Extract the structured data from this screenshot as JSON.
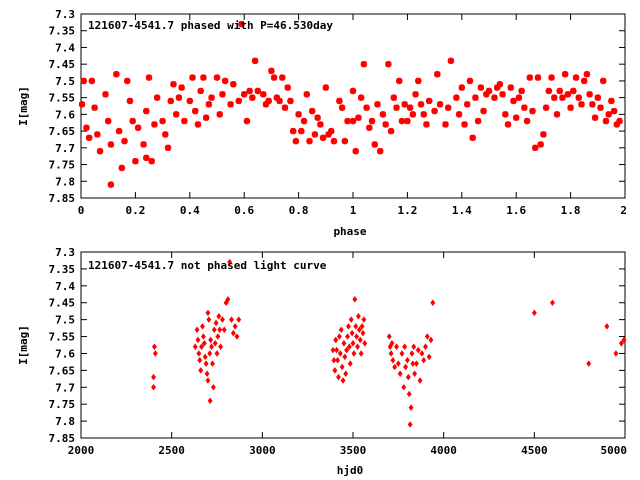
{
  "chart_data": [
    {
      "type": "scatter",
      "title": "121607-4541.7 phased with P=46.530day",
      "xlabel": "phase",
      "ylabel": "I[mag]",
      "xlim": [
        0,
        2
      ],
      "ylim": [
        7.3,
        7.85
      ],
      "y_inverted": true,
      "grid": false,
      "marker": "star",
      "marker_color": "#ff0000",
      "x_ticks": [
        "0",
        "0.2",
        "0.4",
        "0.6",
        "0.8",
        "1",
        "1.2",
        "1.4",
        "1.6",
        "1.8",
        "2"
      ],
      "y_ticks": [
        "7.3",
        "7.35",
        "7.4",
        "7.45",
        "7.5",
        "7.55",
        "7.6",
        "7.65",
        "7.7",
        "7.75",
        "7.8",
        "7.85"
      ],
      "points": [
        [
          0.59,
          7.33
        ],
        [
          0.01,
          7.5
        ],
        [
          0.0,
          7.57
        ],
        [
          0.02,
          7.64
        ],
        [
          0.03,
          7.67
        ],
        [
          0.04,
          7.5
        ],
        [
          0.05,
          7.58
        ],
        [
          0.06,
          7.66
        ],
        [
          0.07,
          7.71
        ],
        [
          0.09,
          7.54
        ],
        [
          0.1,
          7.62
        ],
        [
          0.11,
          7.69
        ],
        [
          0.11,
          7.81
        ],
        [
          0.13,
          7.48
        ],
        [
          0.14,
          7.65
        ],
        [
          0.15,
          7.76
        ],
        [
          0.16,
          7.68
        ],
        [
          0.17,
          7.5
        ],
        [
          0.18,
          7.56
        ],
        [
          0.19,
          7.62
        ],
        [
          0.2,
          7.74
        ],
        [
          0.21,
          7.64
        ],
        [
          0.23,
          7.69
        ],
        [
          0.24,
          7.59
        ],
        [
          0.24,
          7.73
        ],
        [
          0.25,
          7.49
        ],
        [
          0.26,
          7.74
        ],
        [
          0.27,
          7.63
        ],
        [
          0.28,
          7.55
        ],
        [
          0.3,
          7.62
        ],
        [
          0.31,
          7.66
        ],
        [
          0.32,
          7.7
        ],
        [
          0.33,
          7.56
        ],
        [
          0.34,
          7.51
        ],
        [
          0.35,
          7.6
        ],
        [
          0.36,
          7.55
        ],
        [
          0.37,
          7.52
        ],
        [
          0.38,
          7.62
        ],
        [
          0.4,
          7.56
        ],
        [
          0.41,
          7.49
        ],
        [
          0.42,
          7.59
        ],
        [
          0.43,
          7.63
        ],
        [
          0.44,
          7.53
        ],
        [
          0.45,
          7.49
        ],
        [
          0.46,
          7.61
        ],
        [
          0.47,
          7.57
        ],
        [
          0.48,
          7.55
        ],
        [
          0.5,
          7.49
        ],
        [
          0.51,
          7.6
        ],
        [
          0.52,
          7.54
        ],
        [
          0.53,
          7.5
        ],
        [
          0.55,
          7.57
        ],
        [
          0.56,
          7.51
        ],
        [
          0.58,
          7.56
        ],
        [
          0.6,
          7.54
        ],
        [
          0.61,
          7.62
        ],
        [
          0.62,
          7.53
        ],
        [
          0.63,
          7.55
        ],
        [
          0.64,
          7.44
        ],
        [
          0.65,
          7.53
        ],
        [
          0.67,
          7.54
        ],
        [
          0.68,
          7.57
        ],
        [
          0.69,
          7.56
        ],
        [
          0.7,
          7.47
        ],
        [
          0.71,
          7.49
        ],
        [
          0.72,
          7.55
        ],
        [
          0.73,
          7.56
        ],
        [
          0.74,
          7.49
        ],
        [
          0.75,
          7.58
        ],
        [
          0.76,
          7.52
        ],
        [
          0.77,
          7.56
        ],
        [
          0.78,
          7.65
        ],
        [
          0.79,
          7.68
        ],
        [
          0.8,
          7.6
        ],
        [
          0.81,
          7.65
        ],
        [
          0.82,
          7.62
        ],
        [
          0.83,
          7.54
        ],
        [
          0.84,
          7.68
        ],
        [
          0.85,
          7.59
        ],
        [
          0.86,
          7.66
        ],
        [
          0.87,
          7.61
        ],
        [
          0.88,
          7.63
        ],
        [
          0.89,
          7.67
        ],
        [
          0.9,
          7.52
        ],
        [
          0.91,
          7.66
        ],
        [
          0.92,
          7.65
        ],
        [
          0.93,
          7.68
        ],
        [
          0.95,
          7.56
        ],
        [
          0.96,
          7.58
        ],
        [
          0.97,
          7.68
        ],
        [
          0.98,
          7.62
        ],
        [
          1.0,
          7.53
        ],
        [
          1.0,
          7.62
        ],
        [
          1.01,
          7.71
        ],
        [
          1.02,
          7.61
        ],
        [
          1.03,
          7.55
        ],
        [
          1.04,
          7.45
        ],
        [
          1.05,
          7.58
        ],
        [
          1.06,
          7.64
        ],
        [
          1.07,
          7.62
        ],
        [
          1.08,
          7.69
        ],
        [
          1.09,
          7.57
        ],
        [
          1.1,
          7.71
        ],
        [
          1.11,
          7.6
        ],
        [
          1.12,
          7.63
        ],
        [
          1.13,
          7.45
        ],
        [
          1.14,
          7.65
        ],
        [
          1.15,
          7.55
        ],
        [
          1.16,
          7.58
        ],
        [
          1.17,
          7.5
        ],
        [
          1.18,
          7.62
        ],
        [
          1.19,
          7.57
        ],
        [
          1.2,
          7.62
        ],
        [
          1.21,
          7.58
        ],
        [
          1.22,
          7.6
        ],
        [
          1.23,
          7.54
        ],
        [
          1.24,
          7.5
        ],
        [
          1.25,
          7.57
        ],
        [
          1.26,
          7.6
        ],
        [
          1.27,
          7.63
        ],
        [
          1.28,
          7.56
        ],
        [
          1.3,
          7.59
        ],
        [
          1.31,
          7.48
        ],
        [
          1.32,
          7.57
        ],
        [
          1.34,
          7.63
        ],
        [
          1.35,
          7.58
        ],
        [
          1.36,
          7.44
        ],
        [
          1.38,
          7.55
        ],
        [
          1.39,
          7.6
        ],
        [
          1.4,
          7.52
        ],
        [
          1.41,
          7.63
        ],
        [
          1.42,
          7.57
        ],
        [
          1.43,
          7.5
        ],
        [
          1.44,
          7.67
        ],
        [
          1.45,
          7.55
        ],
        [
          1.46,
          7.62
        ],
        [
          1.47,
          7.52
        ],
        [
          1.48,
          7.59
        ],
        [
          1.49,
          7.54
        ],
        [
          1.5,
          7.53
        ],
        [
          1.52,
          7.55
        ],
        [
          1.53,
          7.52
        ],
        [
          1.54,
          7.51
        ],
        [
          1.55,
          7.54
        ],
        [
          1.56,
          7.6
        ],
        [
          1.57,
          7.63
        ],
        [
          1.58,
          7.52
        ],
        [
          1.59,
          7.56
        ],
        [
          1.6,
          7.61
        ],
        [
          1.61,
          7.55
        ],
        [
          1.62,
          7.53
        ],
        [
          1.63,
          7.58
        ],
        [
          1.64,
          7.62
        ],
        [
          1.65,
          7.49
        ],
        [
          1.66,
          7.59
        ],
        [
          1.67,
          7.7
        ],
        [
          1.68,
          7.49
        ],
        [
          1.69,
          7.69
        ],
        [
          1.7,
          7.66
        ],
        [
          1.71,
          7.58
        ],
        [
          1.72,
          7.53
        ],
        [
          1.73,
          7.49
        ],
        [
          1.74,
          7.55
        ],
        [
          1.75,
          7.6
        ],
        [
          1.76,
          7.53
        ],
        [
          1.77,
          7.55
        ],
        [
          1.78,
          7.48
        ],
        [
          1.79,
          7.54
        ],
        [
          1.8,
          7.58
        ],
        [
          1.81,
          7.53
        ],
        [
          1.82,
          7.49
        ],
        [
          1.83,
          7.55
        ],
        [
          1.84,
          7.57
        ],
        [
          1.85,
          7.5
        ],
        [
          1.86,
          7.48
        ],
        [
          1.87,
          7.54
        ],
        [
          1.88,
          7.57
        ],
        [
          1.89,
          7.61
        ],
        [
          1.9,
          7.55
        ],
        [
          1.91,
          7.58
        ],
        [
          1.92,
          7.5
        ],
        [
          1.93,
          7.62
        ],
        [
          1.94,
          7.6
        ],
        [
          1.95,
          7.56
        ],
        [
          1.96,
          7.59
        ],
        [
          1.97,
          7.63
        ],
        [
          1.98,
          7.62
        ]
      ]
    },
    {
      "type": "scatter",
      "title": "121607-4541.7 not phased light curve",
      "xlabel": "hjd0",
      "ylabel": "I[mag]",
      "xlim": [
        2000,
        5000
      ],
      "ylim": [
        7.3,
        7.85
      ],
      "y_inverted": true,
      "grid": false,
      "marker": "diamond",
      "marker_color": "#ff0000",
      "x_ticks": [
        "2000",
        "2500",
        "3000",
        "3500",
        "4000",
        "4500",
        "5000"
      ],
      "y_ticks": [
        "7.3",
        "7.35",
        "7.4",
        "7.45",
        "7.5",
        "7.55",
        "7.6",
        "7.65",
        "7.7",
        "7.75",
        "7.8",
        "7.85"
      ],
      "points": [
        [
          2400,
          7.67
        ],
        [
          2400,
          7.7
        ],
        [
          2405,
          7.58
        ],
        [
          2410,
          7.6
        ],
        [
          2630,
          7.58
        ],
        [
          2640,
          7.53
        ],
        [
          2645,
          7.56
        ],
        [
          2650,
          7.6
        ],
        [
          2655,
          7.62
        ],
        [
          2660,
          7.65
        ],
        [
          2665,
          7.58
        ],
        [
          2670,
          7.52
        ],
        [
          2675,
          7.55
        ],
        [
          2680,
          7.57
        ],
        [
          2685,
          7.61
        ],
        [
          2690,
          7.63
        ],
        [
          2695,
          7.66
        ],
        [
          2700,
          7.48
        ],
        [
          2700,
          7.68
        ],
        [
          2705,
          7.5
        ],
        [
          2710,
          7.6
        ],
        [
          2712,
          7.74
        ],
        [
          2715,
          7.56
        ],
        [
          2720,
          7.58
        ],
        [
          2725,
          7.63
        ],
        [
          2730,
          7.7
        ],
        [
          2735,
          7.53
        ],
        [
          2740,
          7.57
        ],
        [
          2745,
          7.51
        ],
        [
          2750,
          7.6
        ],
        [
          2755,
          7.55
        ],
        [
          2760,
          7.49
        ],
        [
          2765,
          7.53
        ],
        [
          2770,
          7.58
        ],
        [
          2780,
          7.5
        ],
        [
          2790,
          7.53
        ],
        [
          2800,
          7.45
        ],
        [
          2810,
          7.44
        ],
        [
          2820,
          7.33
        ],
        [
          2830,
          7.5
        ],
        [
          2840,
          7.54
        ],
        [
          2850,
          7.52
        ],
        [
          2860,
          7.55
        ],
        [
          2870,
          7.5
        ],
        [
          3390,
          7.59
        ],
        [
          3395,
          7.62
        ],
        [
          3400,
          7.65
        ],
        [
          3405,
          7.56
        ],
        [
          3410,
          7.59
        ],
        [
          3415,
          7.62
        ],
        [
          3420,
          7.67
        ],
        [
          3425,
          7.55
        ],
        [
          3430,
          7.6
        ],
        [
          3435,
          7.53
        ],
        [
          3440,
          7.64
        ],
        [
          3445,
          7.68
        ],
        [
          3450,
          7.57
        ],
        [
          3455,
          7.61
        ],
        [
          3460,
          7.66
        ],
        [
          3465,
          7.59
        ],
        [
          3470,
          7.55
        ],
        [
          3475,
          7.52
        ],
        [
          3480,
          7.58
        ],
        [
          3485,
          7.63
        ],
        [
          3490,
          7.5
        ],
        [
          3495,
          7.54
        ],
        [
          3500,
          7.57
        ],
        [
          3505,
          7.6
        ],
        [
          3510,
          7.44
        ],
        [
          3515,
          7.52
        ],
        [
          3520,
          7.55
        ],
        [
          3525,
          7.58
        ],
        [
          3530,
          7.49
        ],
        [
          3535,
          7.53
        ],
        [
          3540,
          7.56
        ],
        [
          3545,
          7.6
        ],
        [
          3550,
          7.52
        ],
        [
          3555,
          7.54
        ],
        [
          3560,
          7.5
        ],
        [
          3565,
          7.57
        ],
        [
          3700,
          7.55
        ],
        [
          3705,
          7.58
        ],
        [
          3710,
          7.6
        ],
        [
          3715,
          7.57
        ],
        [
          3720,
          7.62
        ],
        [
          3730,
          7.64
        ],
        [
          3740,
          7.58
        ],
        [
          3750,
          7.63
        ],
        [
          3760,
          7.66
        ],
        [
          3770,
          7.6
        ],
        [
          3780,
          7.7
        ],
        [
          3785,
          7.58
        ],
        [
          3790,
          7.64
        ],
        [
          3800,
          7.62
        ],
        [
          3805,
          7.67
        ],
        [
          3810,
          7.72
        ],
        [
          3815,
          7.81
        ],
        [
          3820,
          7.76
        ],
        [
          3825,
          7.6
        ],
        [
          3830,
          7.63
        ],
        [
          3835,
          7.58
        ],
        [
          3840,
          7.66
        ],
        [
          3850,
          7.63
        ],
        [
          3860,
          7.59
        ],
        [
          3870,
          7.68
        ],
        [
          3880,
          7.6
        ],
        [
          3890,
          7.62
        ],
        [
          3900,
          7.58
        ],
        [
          3910,
          7.55
        ],
        [
          3920,
          7.61
        ],
        [
          3930,
          7.56
        ],
        [
          3940,
          7.45
        ],
        [
          4500,
          7.48
        ],
        [
          4600,
          7.45
        ],
        [
          4800,
          7.63
        ],
        [
          4900,
          7.52
        ],
        [
          4950,
          7.6
        ],
        [
          4980,
          7.57
        ],
        [
          5000,
          7.56
        ]
      ]
    }
  ]
}
